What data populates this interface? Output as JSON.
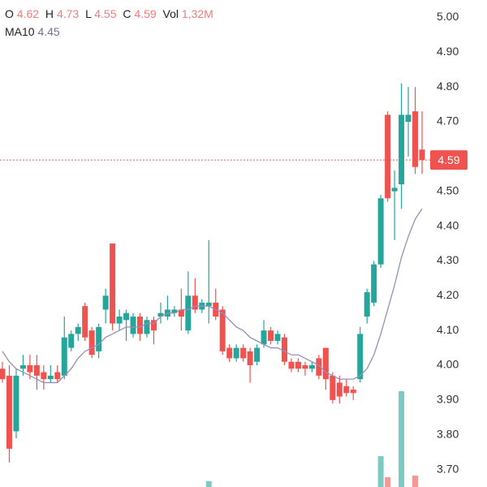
{
  "chart_data": {
    "type": "candlestick",
    "open": [
      3.99,
      3.97,
      3.81,
      3.99,
      4.0,
      4.0,
      3.98,
      3.96,
      3.98,
      3.97,
      4.05,
      4.09,
      4.17,
      4.1,
      4.04,
      4.16,
      4.35,
      4.12,
      4.13,
      4.09,
      4.14,
      4.09,
      4.13,
      4.14,
      4.14,
      4.15,
      4.16,
      4.1,
      4.2,
      4.16,
      4.17,
      4.18,
      4.16,
      4.05,
      4.02,
      4.05,
      4.04,
      4.01,
      4.06,
      4.1,
      4.07,
      4.08,
      4.01,
      4.01,
      4.0,
      3.99,
      4.02,
      4.05,
      3.97,
      3.95,
      3.94,
      3.93,
      3.96,
      4.14,
      4.18,
      4.29,
      4.72,
      4.5,
      4.52,
      4.7,
      4.73,
      4.62
    ],
    "high": [
      4.01,
      4.0,
      3.99,
      4.03,
      4.03,
      4.03,
      4.0,
      4.0,
      4.0,
      4.14,
      4.1,
      4.12,
      4.18,
      4.11,
      4.12,
      4.22,
      4.35,
      4.16,
      4.16,
      4.15,
      4.15,
      4.14,
      4.14,
      4.18,
      4.2,
      4.17,
      4.22,
      4.27,
      4.25,
      4.19,
      4.36,
      4.22,
      4.17,
      4.06,
      4.06,
      4.06,
      4.05,
      4.06,
      4.13,
      4.11,
      4.1,
      4.09,
      4.02,
      4.02,
      4.01,
      4.01,
      4.03,
      4.05,
      3.98,
      3.97,
      3.96,
      3.94,
      4.11,
      4.22,
      4.3,
      4.49,
      4.73,
      4.56,
      4.81,
      4.8,
      4.8,
      4.73
    ],
    "low": [
      3.95,
      3.72,
      3.79,
      3.97,
      3.96,
      3.93,
      3.93,
      3.95,
      3.95,
      3.96,
      4.04,
      4.07,
      4.07,
      4.02,
      4.02,
      4.12,
      4.1,
      4.1,
      4.07,
      4.08,
      4.07,
      4.08,
      4.06,
      4.12,
      4.13,
      4.14,
      4.1,
      4.09,
      4.15,
      4.15,
      4.12,
      4.13,
      4.03,
      4.01,
      4.01,
      4.01,
      3.95,
      4.0,
      4.05,
      4.06,
      4.06,
      4.0,
      3.98,
      3.98,
      3.97,
      3.98,
      3.96,
      3.93,
      3.89,
      3.89,
      3.91,
      3.9,
      3.95,
      4.12,
      4.17,
      4.28,
      4.47,
      4.36,
      4.45,
      4.6,
      4.55,
      4.55
    ],
    "close": [
      3.96,
      3.76,
      3.97,
      4.0,
      3.98,
      3.97,
      3.96,
      3.97,
      3.96,
      4.08,
      4.09,
      4.11,
      4.08,
      4.03,
      4.11,
      4.2,
      4.12,
      4.14,
      4.15,
      4.14,
      4.09,
      4.13,
      4.1,
      4.15,
      4.16,
      4.16,
      4.14,
      4.2,
      4.16,
      4.18,
      4.18,
      4.14,
      4.04,
      4.02,
      4.05,
      4.02,
      4.0,
      4.05,
      4.1,
      4.07,
      4.09,
      4.01,
      3.99,
      3.99,
      3.99,
      4.0,
      3.97,
      3.96,
      3.9,
      3.91,
      3.92,
      3.92,
      4.09,
      4.21,
      4.29,
      4.48,
      4.48,
      4.51,
      4.72,
      4.72,
      4.57,
      4.59
    ],
    "ma10": [
      4.04,
      4.01,
      3.99,
      3.98,
      3.97,
      3.96,
      3.95,
      3.95,
      3.95,
      3.97,
      3.99,
      4.02,
      4.04,
      4.05,
      4.06,
      4.08,
      4.09,
      4.1,
      4.11,
      4.11,
      4.11,
      4.12,
      4.12,
      4.14,
      4.15,
      4.15,
      4.16,
      4.16,
      4.17,
      4.17,
      4.17,
      4.16,
      4.15,
      4.13,
      4.11,
      4.1,
      4.08,
      4.07,
      4.06,
      4.05,
      4.05,
      4.04,
      4.03,
      4.03,
      4.02,
      4.01,
      4.0,
      3.98,
      3.97,
      3.96,
      3.96,
      3.96,
      3.97,
      3.99,
      4.03,
      4.09,
      4.16,
      4.23,
      4.31,
      4.37,
      4.42,
      4.45
    ],
    "volume": [
      1.0,
      1.0,
      1.0,
      1.0,
      1.0,
      1.0,
      1.0,
      1.0,
      1.0,
      1.0,
      1.0,
      1.0,
      1.0,
      1.0,
      1.0,
      1.0,
      1.0,
      1.0,
      1.0,
      1.0,
      1.0,
      1.0,
      1.0,
      1.0,
      1.0,
      1.0,
      1.0,
      1.0,
      1.0,
      1.0,
      2.7,
      1.0,
      1.0,
      1.0,
      1.0,
      1.0,
      1.0,
      1.0,
      1.0,
      1.0,
      1.0,
      1.0,
      1.0,
      1.0,
      1.0,
      1.0,
      1.0,
      1.0,
      1.0,
      1.0,
      1.0,
      1.0,
      1.0,
      1.0,
      1.0,
      5.8,
      3.2,
      1.0,
      13.8,
      1.0,
      3.4,
      1.32
    ],
    "up_color": "#26a69a",
    "down_color": "#ef5350",
    "ma_color": "#9a8cba",
    "ylim": [
      3.65,
      5.05
    ],
    "yticks": [
      {
        "value": 3.7,
        "label": "3.70"
      },
      {
        "value": 3.8,
        "label": "3.80"
      },
      {
        "value": 3.9,
        "label": "3.90"
      },
      {
        "value": 4.0,
        "label": "4.00"
      },
      {
        "value": 4.1,
        "label": "4.10"
      },
      {
        "value": 4.2,
        "label": "4.20"
      },
      {
        "value": 4.3,
        "label": "4.30"
      },
      {
        "value": 4.4,
        "label": "4.40"
      },
      {
        "value": 4.5,
        "label": "4.50"
      },
      {
        "value": 4.6,
        "label": "4.60"
      },
      {
        "value": 4.7,
        "label": "4.70"
      },
      {
        "value": 4.8,
        "label": "4.80"
      },
      {
        "value": 4.9,
        "label": "4.90"
      },
      {
        "value": 5.0,
        "label": "5.00"
      }
    ],
    "last_price": 4.59,
    "legend": [
      {
        "label": "O",
        "value": "4.62"
      },
      {
        "label": "H",
        "value": "4.73"
      },
      {
        "label": "L",
        "value": "4.55"
      },
      {
        "label": "C",
        "value": "4.59"
      },
      {
        "label": "Vol",
        "value": "1,32M"
      }
    ],
    "ma_legend": {
      "label": "MA10",
      "value": "4.45"
    }
  }
}
